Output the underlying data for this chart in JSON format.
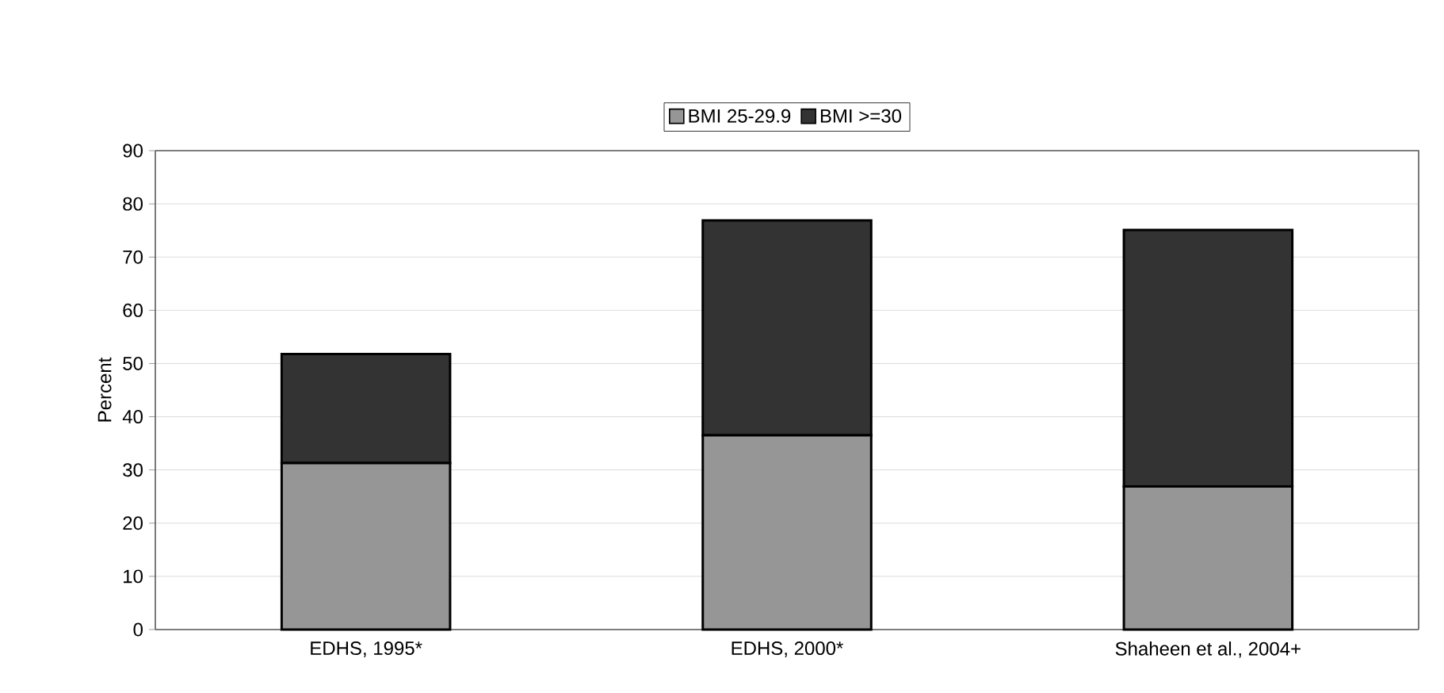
{
  "chart_data": {
    "type": "bar",
    "stacked": true,
    "ylabel": "Percent",
    "categories": [
      "EDHS, 1995*",
      "EDHS, 2000*",
      "Shaheen et al., 2004+"
    ],
    "series": [
      {
        "name": "BMI 25-29.9",
        "color": "#969696",
        "values": [
          31.3,
          36.5,
          26.9
        ]
      },
      {
        "name": "BMI >=30",
        "color": "#333333",
        "values": [
          20.5,
          40.4,
          48.2
        ]
      }
    ],
    "ylim": [
      0,
      90
    ],
    "yticks": [
      0,
      10,
      20,
      30,
      40,
      50,
      60,
      70,
      80,
      90
    ],
    "grid": "y",
    "legend": "top"
  }
}
